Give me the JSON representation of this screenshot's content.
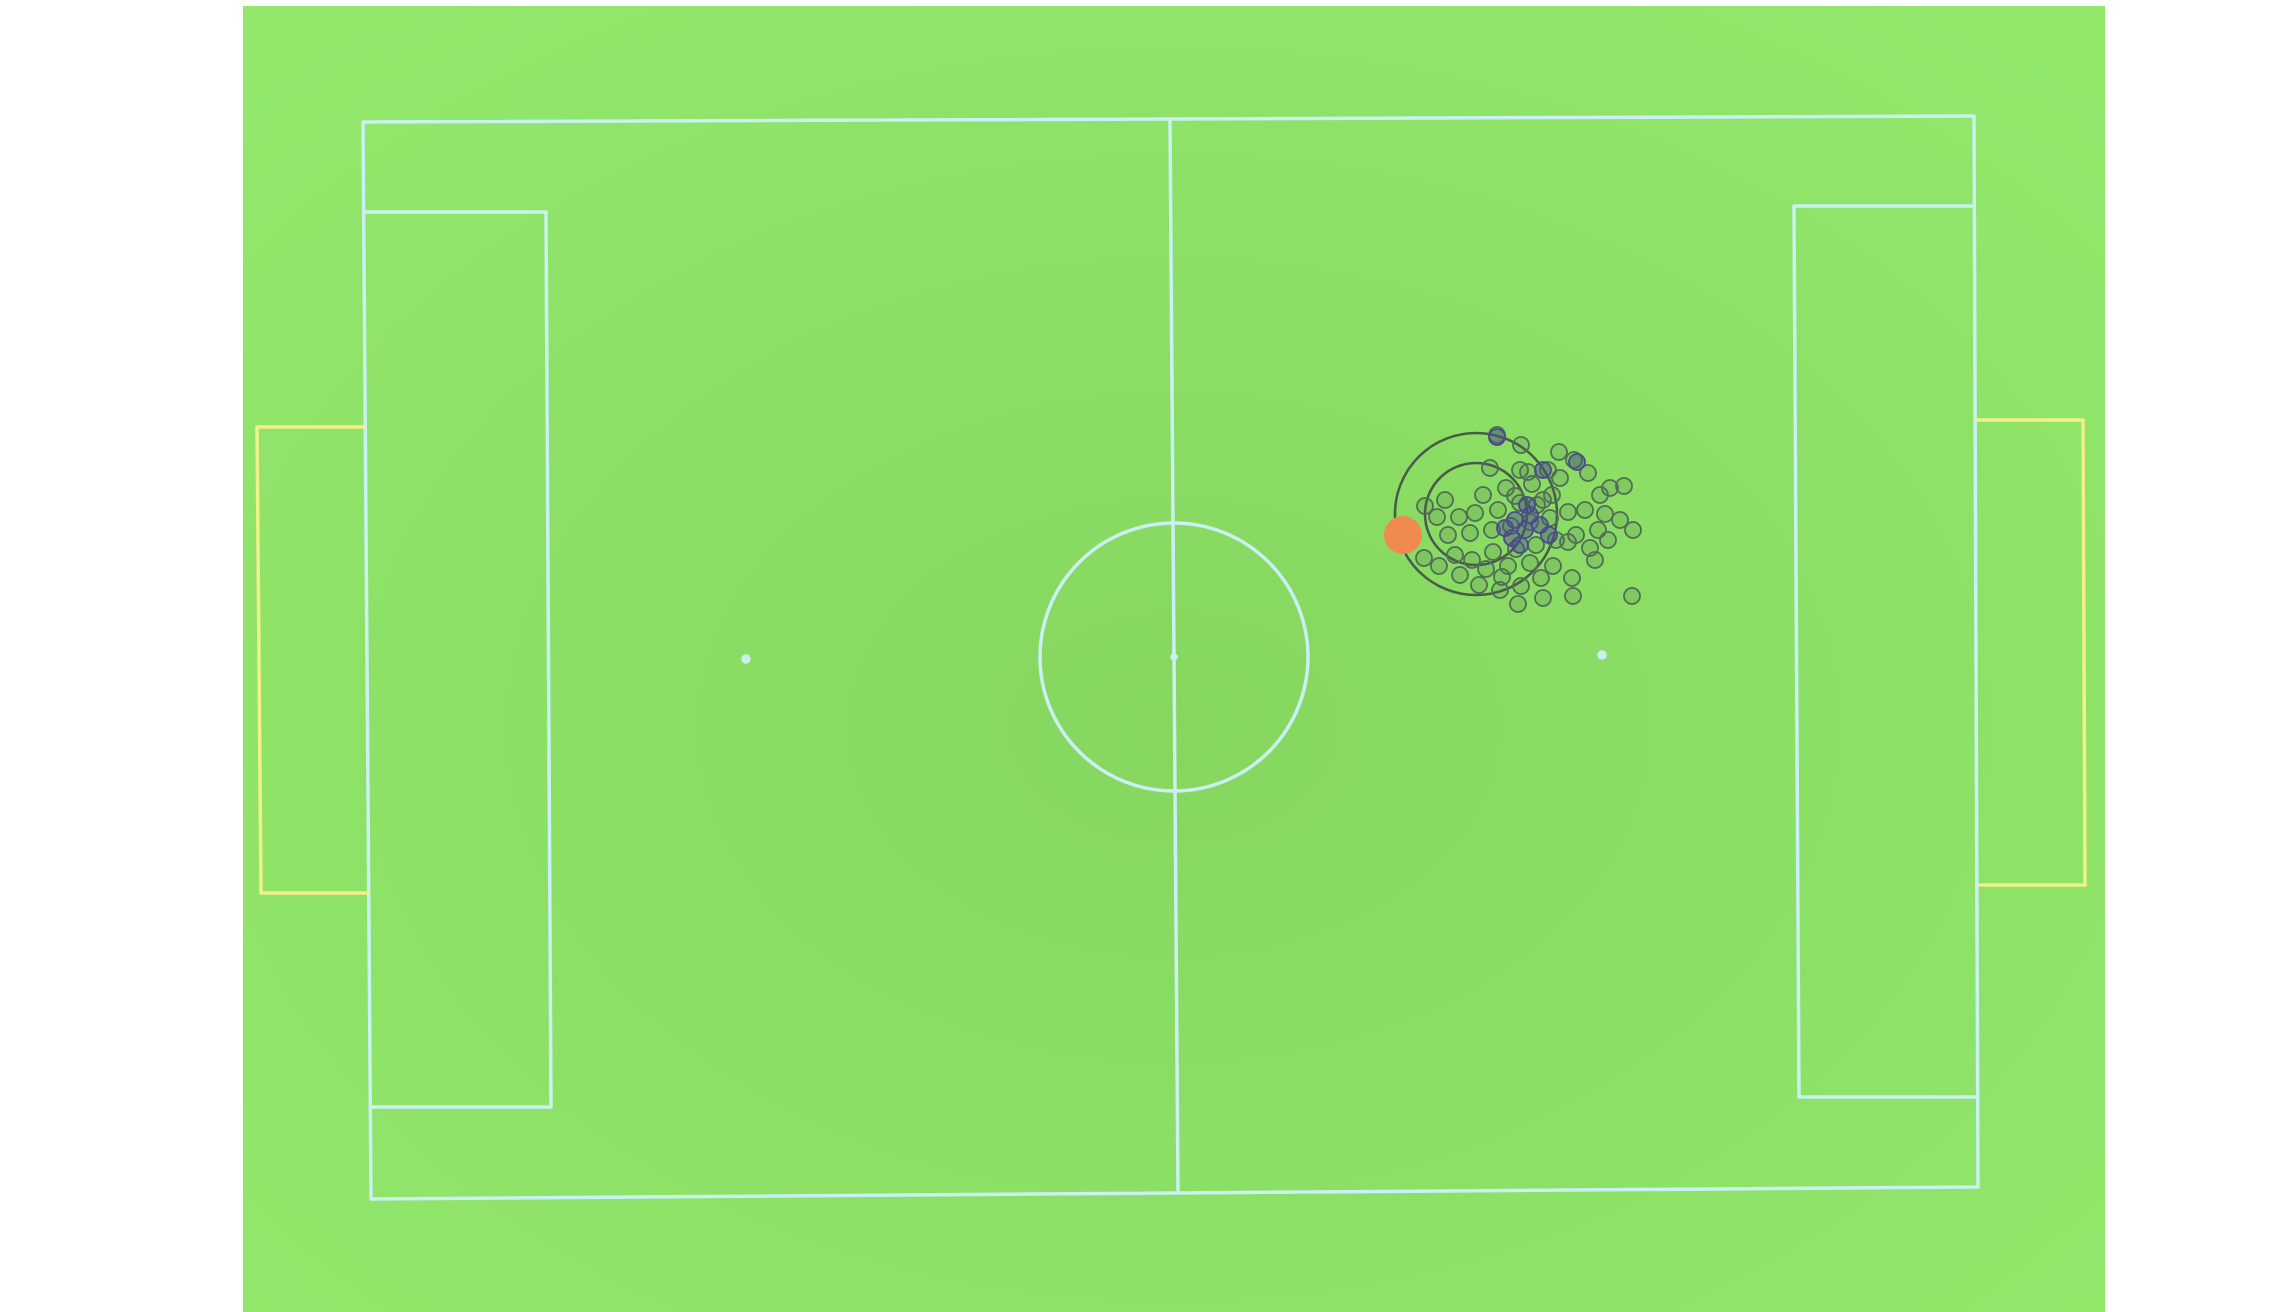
{
  "scene": {
    "kind": "soccer-field-top-down",
    "colors": {
      "page_background": "#ffffff",
      "turf": "#8fe369",
      "turf_shade": "#87d95f",
      "field_lines": "#c9f0f2",
      "goal_lines": "#f2f08a",
      "ball": "#f08a4e",
      "particles": "#4f6e55",
      "particle_core": "#4a4a8c",
      "range_rings": "#4a5a4a"
    },
    "icons": {
      "ball": "ball-icon",
      "player": "player-estimate-icon"
    }
  }
}
